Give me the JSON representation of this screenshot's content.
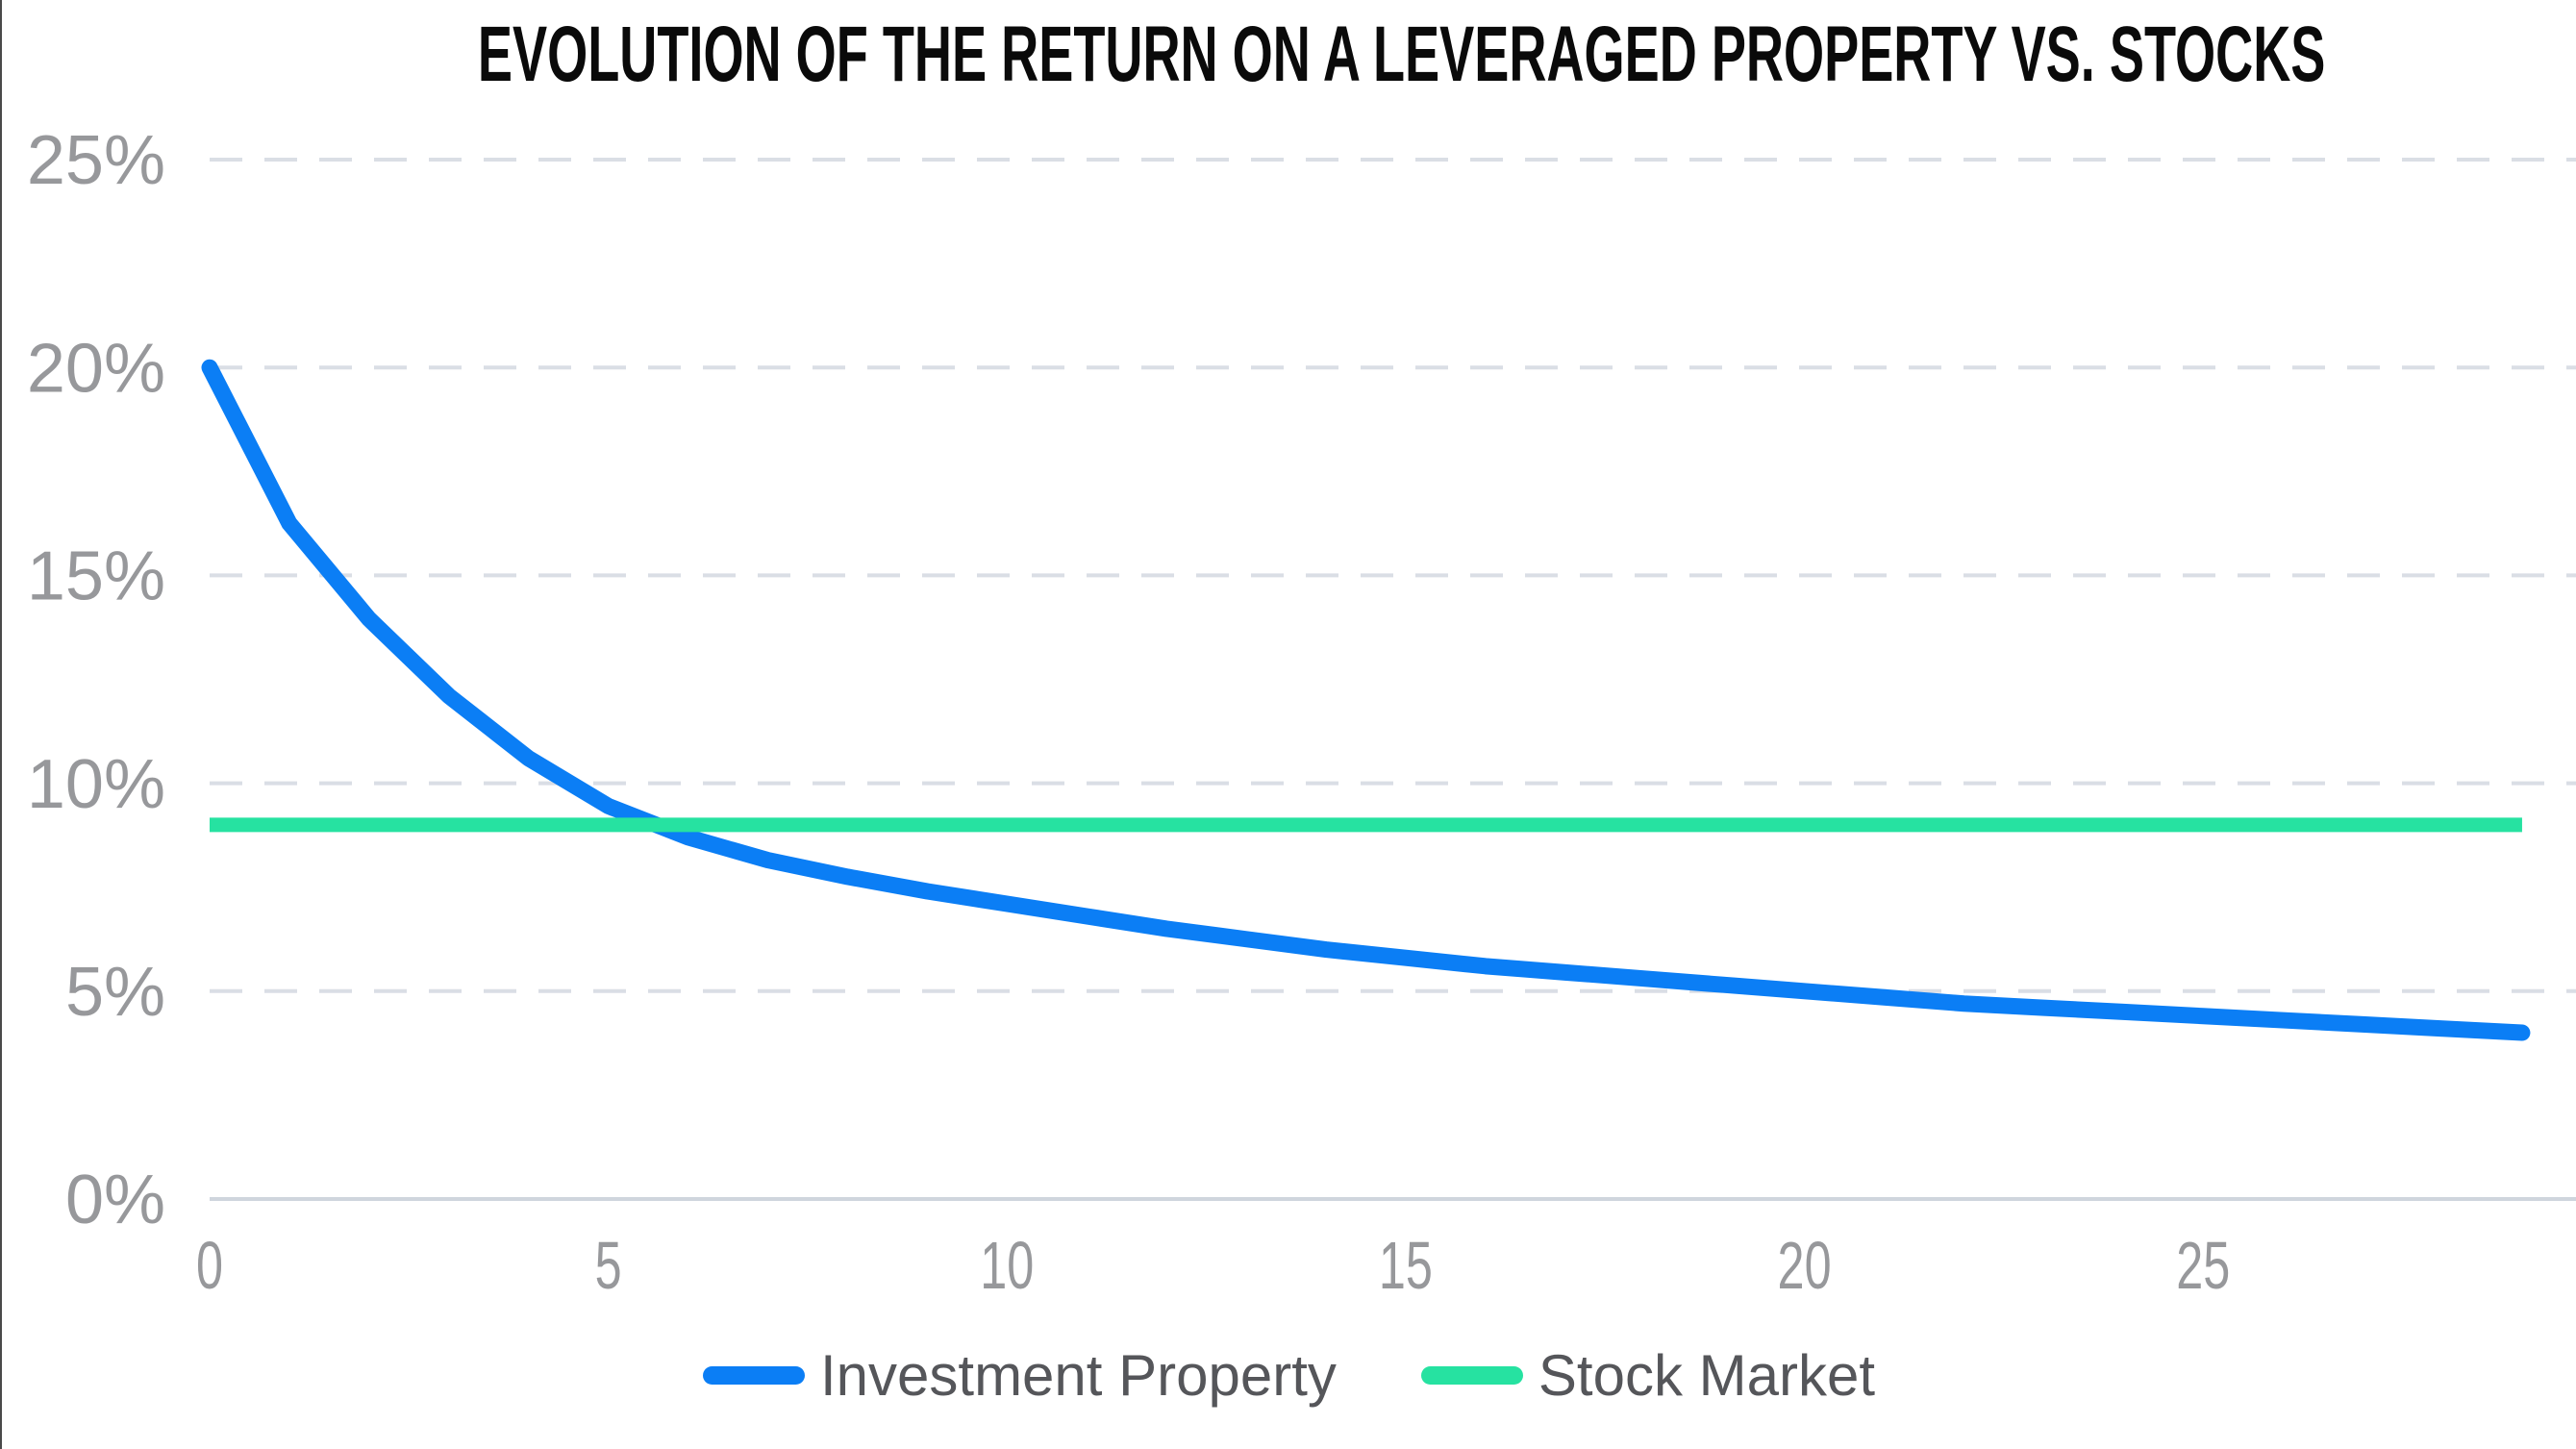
{
  "chart_data": {
    "type": "line",
    "title": "EVOLUTION OF THE RETURN ON A LEVERAGED PROPERTY VS. STOCKS",
    "x": [
      0,
      1,
      2,
      3,
      4,
      5,
      6,
      7,
      8,
      9,
      10,
      11,
      12,
      13,
      14,
      15,
      16,
      17,
      18,
      19,
      20,
      21,
      22,
      23,
      24,
      25,
      26,
      27,
      28,
      29
    ],
    "series": [
      {
        "name": "Investment Property",
        "color": "#0b7ef5",
        "values": [
          20.0,
          16.25,
          13.95,
          12.1,
          10.6,
          9.45,
          8.7,
          8.15,
          7.75,
          7.4,
          7.1,
          6.8,
          6.5,
          6.25,
          6.0,
          5.8,
          5.6,
          5.45,
          5.3,
          5.15,
          5.0,
          4.85,
          4.7,
          4.6,
          4.5,
          4.4,
          4.3,
          4.2,
          4.1,
          4.0
        ]
      },
      {
        "name": "Stock Market",
        "color": "#26e2a1",
        "values": [
          9,
          9,
          9,
          9,
          9,
          9,
          9,
          9,
          9,
          9,
          9,
          9,
          9,
          9,
          9,
          9,
          9,
          9,
          9,
          9,
          9,
          9,
          9,
          9,
          9,
          9,
          9,
          9,
          9,
          9
        ]
      }
    ],
    "yticks": [
      {
        "value": 25,
        "label": "25%"
      },
      {
        "value": 20,
        "label": "20%"
      },
      {
        "value": 15,
        "label": "15%"
      },
      {
        "value": 10,
        "label": "10%"
      },
      {
        "value": 5,
        "label": "5%"
      },
      {
        "value": 0,
        "label": "0%"
      }
    ],
    "xticks": [
      "0",
      "5",
      "10",
      "15",
      "20",
      "25"
    ],
    "ylim": [
      0,
      25
    ],
    "xlim": [
      0,
      29.7
    ],
    "grid": "horizontal-dashed",
    "legend_position": "bottom"
  }
}
